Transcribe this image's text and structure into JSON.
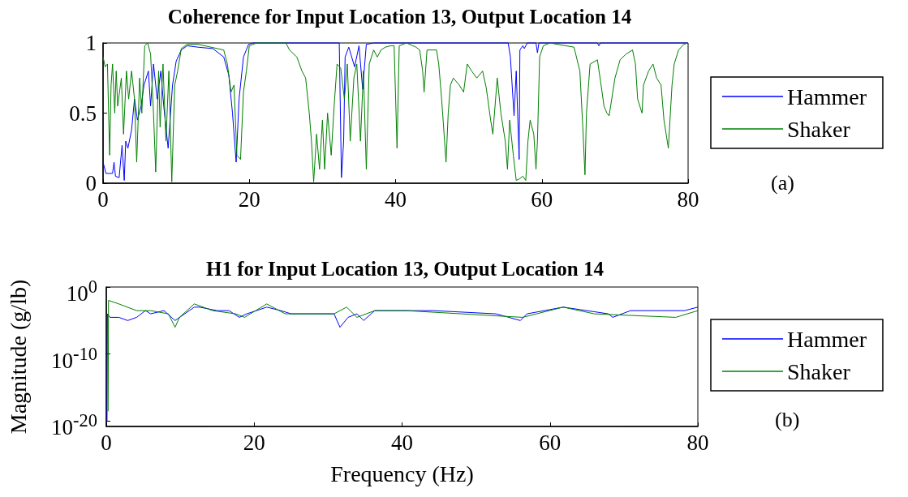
{
  "chart_data": [
    {
      "type": "line",
      "title": "Coherence for Input Location 13, Output Location 14",
      "annotations": [
        "(a)"
      ],
      "xlim": [
        0,
        80
      ],
      "xticks": [
        0,
        20,
        40,
        60,
        80
      ],
      "ylim": [
        0,
        1
      ],
      "yticks": [
        0,
        0.5,
        1
      ],
      "grid": false,
      "legend": "right",
      "marker": "none",
      "series": [
        {
          "name": "Hammer",
          "color": "#0000ff",
          "x": [
            0,
            0.4,
            1.3,
            1.5,
            1.7,
            2.2,
            2.6,
            2.9,
            3.1,
            3.4,
            3.9,
            4.3,
            4.7,
            5.2,
            5.6,
            6.2,
            6.5,
            6.9,
            7.4,
            7.9,
            8.3,
            8.9,
            9.5,
            10,
            10.7,
            11.5,
            13,
            15,
            16.5,
            17.2,
            17.7,
            18.2,
            18.6,
            19.2,
            19.9,
            20.5,
            32.3,
            32.6,
            32.9,
            33.1,
            33.6,
            34.4,
            35,
            35.5,
            36,
            37,
            55.4,
            55.7,
            56.2,
            56.5,
            56.9,
            57,
            57.4,
            57.6,
            58,
            59.2,
            59.4,
            59.6,
            67.6,
            67.8,
            68,
            80
          ],
          "values": [
            0.15,
            0.07,
            0.07,
            0.15,
            0.05,
            0.04,
            0.27,
            0.02,
            0.3,
            0.25,
            0.38,
            0.6,
            0.45,
            0.55,
            0.7,
            0.8,
            0.55,
            0.85,
            0.6,
            0.8,
            0.55,
            0.25,
            0.7,
            0.87,
            0.95,
            0.98,
            0.97,
            0.96,
            0.9,
            0.77,
            0.5,
            0.15,
            0.6,
            0.9,
            0.99,
            1,
            1,
            0.04,
            0.3,
            0.9,
            0.97,
            0.83,
            0.98,
            0.67,
            0.99,
            1,
            1,
            0.9,
            0.48,
            0.8,
            0.17,
            0.95,
            0.98,
            0.96,
            1,
            1,
            0.93,
            1,
            1,
            0.98,
            1,
            1
          ]
        },
        {
          "name": "Shaker",
          "color": "#008000",
          "x": [
            0,
            0.3,
            0.6,
            0.9,
            1.1,
            1.3,
            1.6,
            1.8,
            2,
            2.5,
            2.8,
            3.2,
            3.5,
            3.9,
            4.3,
            4.6,
            5,
            5.3,
            5.7,
            6.1,
            6.5,
            6.9,
            7.2,
            7.6,
            7.8,
            8.2,
            8.6,
            9,
            9.4,
            9.8,
            10.2,
            10.7,
            11.5,
            13,
            16.5,
            17,
            17.5,
            17.9,
            18.3,
            18.8,
            19.2,
            19.6,
            20,
            21,
            25,
            25.5,
            26.5,
            27.2,
            27.7,
            28.2,
            28.5,
            28.8,
            29.2,
            29.6,
            30,
            30.3,
            30.7,
            31.2,
            31.6,
            32,
            32.5,
            33,
            33.4,
            33.8,
            34.3,
            34.7,
            35.2,
            35.6,
            36,
            36.4,
            37,
            37.5,
            38,
            38.6,
            39.3,
            39.8,
            40.2,
            40.5,
            41.5,
            42.8,
            43.3,
            43.7,
            43.9,
            44.3,
            45.6,
            45.9,
            46.3,
            46.7,
            46.9,
            47.2,
            47.5,
            47.9,
            48.7,
            49.3,
            49.8,
            50.4,
            51.1,
            51.9,
            52.4,
            53,
            53.3,
            53.9,
            54.4,
            55,
            55.3,
            55.6,
            56.1,
            56.5,
            56.9,
            57.4,
            57.8,
            58.1,
            58.4,
            58.9,
            59.2,
            59.4,
            59.7,
            60.2,
            61.1,
            64.4,
            65.2,
            65.6,
            65.9,
            66.1,
            66.6,
            67.6,
            68.1,
            68.5,
            68.9,
            69.2,
            70,
            70.7,
            71.5,
            72.4,
            72.8,
            73.1,
            73.7,
            73.9,
            74.6,
            75.2,
            75.7,
            76.3,
            76.7,
            77,
            77.3,
            77.8,
            78.1,
            78.7,
            79.4,
            80
          ],
          "values": [
            0.9,
            0.83,
            0.85,
            0.2,
            0.7,
            0.85,
            0.5,
            0.8,
            0.55,
            0.75,
            0.35,
            0.8,
            0.6,
            0.8,
            0.6,
            0.15,
            0.75,
            0.5,
            0.98,
            1,
            0.92,
            0.5,
            0.08,
            0.8,
            0.4,
            0.85,
            0.3,
            0.8,
            0.01,
            0.7,
            0.8,
            0.96,
            0.99,
            0.99,
            0.95,
            0.85,
            0.65,
            0.7,
            0.2,
            0.17,
            0.65,
            0.8,
            0.98,
            1,
            1,
            0.95,
            0.9,
            0.8,
            0.75,
            0.5,
            0.3,
            0.01,
            0.35,
            0.1,
            0.45,
            0.1,
            0.5,
            0.2,
            0.55,
            0.85,
            0.82,
            0.6,
            0.85,
            0.3,
            0.75,
            0.85,
            0.3,
            0.8,
            0.1,
            0.85,
            0.95,
            0.9,
            0.95,
            0.97,
            0.98,
            0.98,
            0.25,
            0.98,
            1,
            0.97,
            0.95,
            0.8,
            0.65,
            0.95,
            0.95,
            0.85,
            0.6,
            0.3,
            0.15,
            0.5,
            0.7,
            0.75,
            0.7,
            0.65,
            0.85,
            0.8,
            0.75,
            0.8,
            0.68,
            0.45,
            0.35,
            0.75,
            0.5,
            0.3,
            0.1,
            0.45,
            0.2,
            0.02,
            0.03,
            0.05,
            0.02,
            0.3,
            0.45,
            0.35,
            0.1,
            0.3,
            0.9,
            0.98,
            1,
            0.97,
            0.8,
            0.4,
            0.06,
            0.5,
            0.85,
            0.88,
            0.7,
            0.55,
            0.5,
            0.48,
            0.75,
            0.88,
            0.92,
            0.95,
            0.85,
            0.6,
            0.5,
            0.7,
            0.8,
            0.85,
            0.75,
            0.7,
            0.45,
            0.35,
            0.25,
            0.7,
            0.85,
            0.95,
            0.99,
            1
          ]
        }
      ]
    },
    {
      "type": "line",
      "title": "H1 for Input Location 13, Output Location 14",
      "xlabel": "Frequency (Hz)",
      "ylabel": "Magnitude (g/lb)",
      "annotations": [
        "(b)"
      ],
      "log": true,
      "xlim": [
        0,
        80
      ],
      "xticks": [
        0,
        20,
        40,
        60,
        80
      ],
      "ylim": [
        1.6e-21,
        1
      ],
      "yticks": [
        {
          "value": 1,
          "label": "10$^{0}$"
        },
        {
          "value": 1e-10,
          "label": "10$^{-10}$"
        },
        {
          "value": 1e-20,
          "label": "10$^{-20}$"
        }
      ],
      "grid": false,
      "legend": "right",
      "marker": "none",
      "series": [
        {
          "name": "Hammer",
          "color": "#0000ff",
          "x": [
            0.1,
            0.15,
            0.5,
            1.7,
            2.9,
            4.1,
            5.3,
            6,
            7.8,
            9.3,
            11.9,
            12.6,
            15,
            16.6,
            18,
            19,
            21.7,
            23.6,
            25,
            30.8,
            31.6,
            32.7,
            33.9,
            34.8,
            36.3,
            39.9,
            44.2,
            52.7,
            56,
            56.9,
            61.8,
            67.9,
            68.5,
            70.9,
            78.2,
            80
          ],
          "values": [
            1e-20,
            0.0001,
            3e-05,
            3e-05,
            1e-05,
            3e-05,
            0.0003,
            0.0001,
            0.0003,
            1e-05,
            0.001,
            0.001,
            0.0003,
            0.0003,
            3e-05,
            0.0001,
            0.001,
            0.0003,
            0.0001,
            0.0001,
            1e-06,
            3e-05,
            0.0001,
            1e-05,
            0.0003,
            0.0003,
            0.0003,
            0.0001,
            1e-05,
            0.0001,
            0.001,
            0.0001,
            3e-05,
            0.0003,
            0.0003,
            0.001
          ]
        },
        {
          "name": "Shaker",
          "color": "#008000",
          "x": [
            0.25,
            0.3,
            1.7,
            4.1,
            6,
            8.4,
            9.3,
            9.9,
            11.9,
            14.4,
            17.5,
            18.7,
            21.7,
            24.2,
            30.8,
            32.5,
            33.9,
            36.3,
            40.5,
            56.3,
            61.8,
            66,
            77,
            80
          ],
          "values": [
            3e-19,
            0.01,
            0.003,
            0.0003,
            0.0003,
            0.0001,
            1e-06,
            3e-05,
            0.003,
            0.0003,
            0.0001,
            3e-05,
            0.003,
            0.0001,
            0.0001,
            0.001,
            3e-05,
            0.0003,
            0.0003,
            3e-05,
            0.001,
            0.0001,
            3e-05,
            0.0003
          ]
        }
      ]
    }
  ]
}
